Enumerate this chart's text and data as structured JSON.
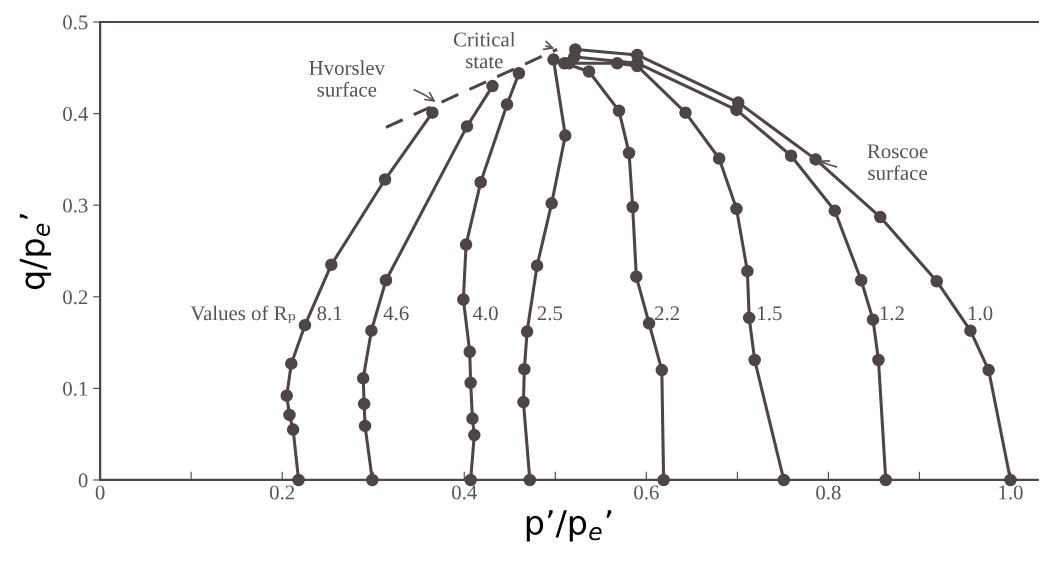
{
  "chart_data": {
    "type": "line",
    "xlabel": "p’/p$_{e}$’",
    "ylabel": "q/p$_{e}$’",
    "xlim": [
      0,
      1.03
    ],
    "ylim": [
      0,
      0.5
    ],
    "xticks": [
      0,
      {
        "value": 0.1,
        "label": null
      },
      0.2,
      {
        "value": 0.3,
        "label": null
      },
      0.4,
      {
        "value": 0.5,
        "label": null
      },
      0.6,
      {
        "value": 0.7,
        "label": null
      },
      0.8,
      {
        "value": 0.9,
        "label": null
      },
      {
        "value": 1.0,
        "label": "1.0"
      }
    ],
    "yticks": [
      0,
      0.1,
      0.2,
      0.3,
      0.4,
      0.5
    ],
    "grid": false,
    "legend": false,
    "marker": "circle",
    "line_style": "solid",
    "series": [
      {
        "name": "8.1",
        "color": "#4f4545",
        "x": [
          0.218,
          0.212,
          0.208,
          0.205,
          0.21,
          0.225,
          0.254,
          0.313,
          0.365
        ],
        "values": [
          0,
          0.055,
          0.071,
          0.092,
          0.127,
          0.169,
          0.235,
          0.328,
          0.401
        ]
      },
      {
        "name": "4.6",
        "color": "#4f4545",
        "x": [
          0.299,
          0.291,
          0.29,
          0.289,
          0.298,
          0.314,
          0.403,
          0.431
        ],
        "values": [
          0,
          0.059,
          0.083,
          0.111,
          0.163,
          0.218,
          0.386,
          0.43
        ]
      },
      {
        "name": "4.0",
        "color": "#4f4545",
        "x": [
          0.407,
          0.411,
          0.409,
          0.407,
          0.406,
          0.399,
          0.402,
          0.418,
          0.447,
          0.46
        ],
        "values": [
          0,
          0.049,
          0.067,
          0.106,
          0.14,
          0.197,
          0.257,
          0.325,
          0.41,
          0.444
        ]
      },
      {
        "name": "2.5",
        "color": "#4f4545",
        "x": [
          0.472,
          0.465,
          0.466,
          0.469,
          0.48,
          0.496,
          0.511,
          0.498
        ],
        "values": [
          0,
          0.085,
          0.121,
          0.162,
          0.234,
          0.302,
          0.376,
          0.459
        ]
      },
      {
        "name": "2.2",
        "color": "#4f4545",
        "x": [
          0.619,
          0.617,
          0.603,
          0.589,
          0.585,
          0.581,
          0.57,
          0.537,
          0.51
        ],
        "values": [
          0,
          0.12,
          0.171,
          0.222,
          0.298,
          0.357,
          0.403,
          0.446,
          0.455
        ]
      },
      {
        "name": "1.5",
        "color": "#4f4545",
        "x": [
          0.751,
          0.719,
          0.713,
          0.711,
          0.699,
          0.68,
          0.643,
          0.59,
          0.568,
          0.515
        ],
        "values": [
          0,
          0.131,
          0.177,
          0.228,
          0.296,
          0.351,
          0.401,
          0.452,
          0.455,
          0.455
        ]
      },
      {
        "name": "1.2",
        "color": "#4f4545",
        "x": [
          0.863,
          0.855,
          0.849,
          0.836,
          0.807,
          0.759,
          0.699,
          0.59,
          0.521
        ],
        "values": [
          0,
          0.131,
          0.175,
          0.218,
          0.294,
          0.354,
          0.404,
          0.455,
          0.462
        ]
      },
      {
        "name": "1.0",
        "color": "#4f4545",
        "x": [
          1.0,
          0.976,
          0.956,
          0.919,
          0.857,
          0.786,
          0.701,
          0.59,
          0.522
        ],
        "values": [
          0,
          0.12,
          0.163,
          0.217,
          0.287,
          0.35,
          0.412,
          0.464,
          0.47
        ]
      },
      {
        "color": "#4f4545",
        "marker": "none",
        "line_style": "dashed",
        "x": [
          0.314,
          0.502
        ],
        "values": [
          0.385,
          0.47
        ]
      }
    ],
    "annotations": [
      "Values of Rₚ",
      {
        "text": "Critical\nstate",
        "x": 0.502,
        "y": 0.47
      },
      {
        "text": "Hvorslev\nsurface",
        "x": 0.371,
        "y": 0.411
      },
      {
        "text": "Roscoe\nsurface",
        "x": 0.786,
        "y": 0.35
      }
    ]
  }
}
